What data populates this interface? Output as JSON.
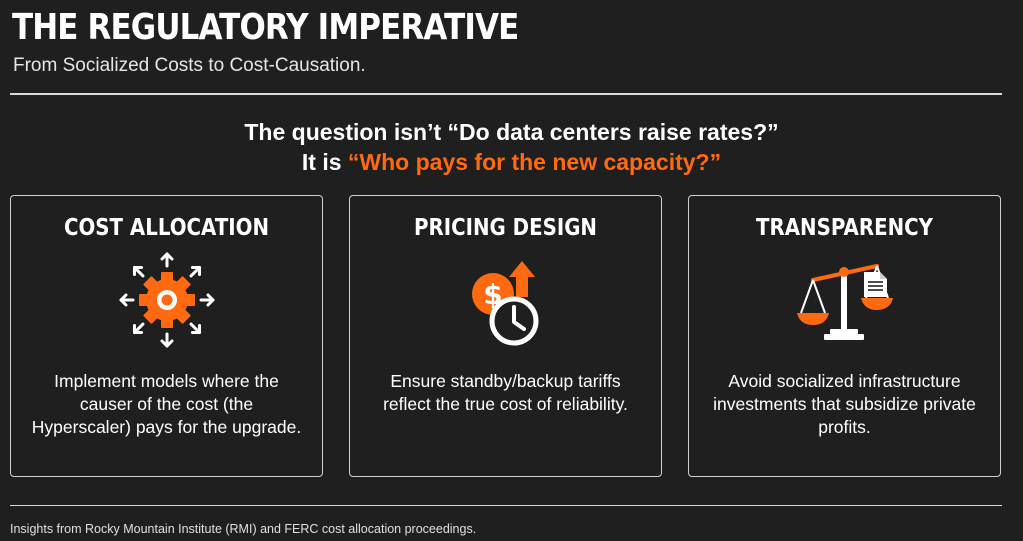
{
  "header": {
    "title": "THE REGULATORY IMPERATIVE",
    "subtitle": "From Socialized Costs to Cost-Causation."
  },
  "question": {
    "line1": "The question isn’t “Do data centers raise rates?”",
    "line2_prefix": "It is ",
    "line2_accent": "“Who pays for the new capacity?”"
  },
  "cards": [
    {
      "title": "COST ALLOCATION",
      "icon": "gear-arrows-icon",
      "text": "Implement models where the causer of the cost (the Hyperscaler) pays for the upgrade."
    },
    {
      "title": "PRICING DESIGN",
      "icon": "dollar-clock-icon",
      "text": "Ensure standby/backup tariffs reflect the true cost of reliability."
    },
    {
      "title": "TRANSPARENCY",
      "icon": "scales-document-icon",
      "text": "Avoid socialized infrastructure investments that subsidize private profits."
    }
  ],
  "footer": {
    "source": "Insights from Rocky Mountain Institute (RMI) and FERC cost allocation proceedings."
  },
  "colors": {
    "background": "#1f1f1f",
    "accent": "#ff6a10",
    "text": "#ffffff"
  }
}
